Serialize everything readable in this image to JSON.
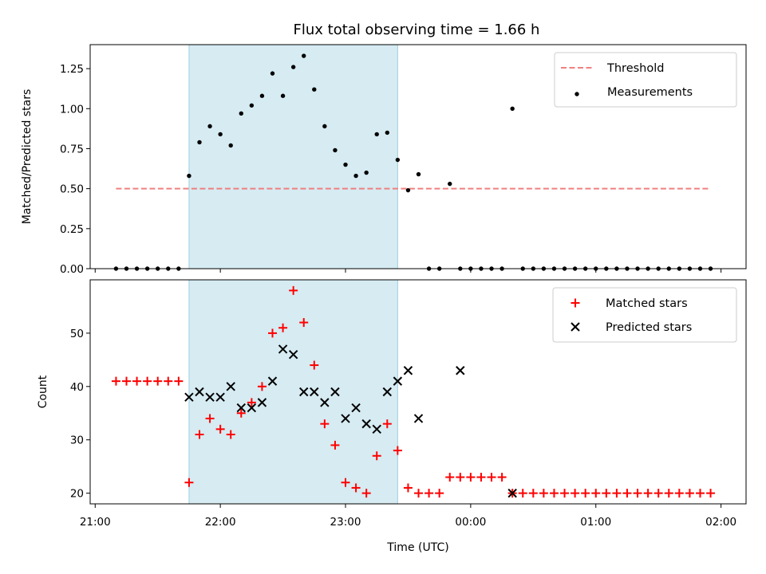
{
  "chart_data": [
    {
      "type": "scatter",
      "title": "Flux total observing time = 1.66 h",
      "xlabel": "",
      "ylabel": "Matched/Predicted stars",
      "xlim": [
        "21:00",
        "02:00"
      ],
      "ylim": [
        0,
        1.4
      ],
      "y_ticks": [
        "0.00",
        "0.25",
        "0.50",
        "0.75",
        "1.00",
        "1.25"
      ],
      "highlight_span": {
        "from": "21:45",
        "to": "23:25",
        "color": "#add8e6"
      },
      "legend_position": "top-right",
      "series": [
        {
          "name": "Threshold",
          "kind": "dashed-line",
          "color": "#f08080",
          "x": [
            "21:10",
            "01:55"
          ],
          "y": [
            0.5,
            0.5
          ]
        },
        {
          "name": "Measurements",
          "kind": "dots",
          "color": "#000000",
          "x": [
            "21:10",
            "21:15",
            "21:20",
            "21:25",
            "21:30",
            "21:35",
            "21:40",
            "21:45",
            "21:50",
            "21:55",
            "22:00",
            "22:05",
            "22:10",
            "22:15",
            "22:20",
            "22:25",
            "22:30",
            "22:35",
            "22:40",
            "22:45",
            "22:50",
            "22:55",
            "23:00",
            "23:05",
            "23:10",
            "23:15",
            "23:20",
            "23:25",
            "23:30",
            "23:35",
            "23:40",
            "23:45",
            "23:50",
            "23:55",
            "00:00",
            "00:05",
            "00:10",
            "00:15",
            "00:20",
            "00:25",
            "00:30",
            "00:35",
            "00:40",
            "00:45",
            "00:50",
            "00:55",
            "01:00",
            "01:05",
            "01:10",
            "01:15",
            "01:20",
            "01:25",
            "01:30",
            "01:35",
            "01:40",
            "01:45",
            "01:50",
            "01:55"
          ],
          "y": [
            0,
            0,
            0,
            0,
            0,
            0,
            0,
            0.58,
            0.79,
            0.89,
            0.84,
            0.77,
            0.97,
            1.02,
            1.08,
            1.22,
            1.08,
            1.26,
            1.33,
            1.12,
            0.89,
            0.74,
            0.65,
            0.58,
            0.6,
            0.84,
            0.85,
            0.68,
            0.49,
            0.59,
            0,
            0,
            0.53,
            0,
            0,
            0,
            0,
            0,
            1.0,
            0,
            0,
            0,
            0,
            0,
            0,
            0,
            0,
            0,
            0,
            0,
            0,
            0,
            0,
            0,
            0,
            0,
            0,
            0
          ]
        }
      ]
    },
    {
      "type": "scatter",
      "title": "",
      "xlabel": "Time (UTC)",
      "ylabel": "Count",
      "xlim": [
        "21:00",
        "02:00"
      ],
      "ylim": [
        18,
        60
      ],
      "x_ticks": [
        "21:00",
        "22:00",
        "23:00",
        "00:00",
        "01:00",
        "02:00"
      ],
      "y_ticks": [
        20,
        30,
        40,
        50
      ],
      "highlight_span": {
        "from": "21:45",
        "to": "23:25",
        "color": "#add8e6"
      },
      "legend_position": "top-right",
      "series": [
        {
          "name": "Matched stars",
          "kind": "plus",
          "color": "#ff0000",
          "x": [
            "21:10",
            "21:15",
            "21:20",
            "21:25",
            "21:30",
            "21:35",
            "21:40",
            "21:45",
            "21:50",
            "21:55",
            "22:00",
            "22:05",
            "22:10",
            "22:15",
            "22:20",
            "22:25",
            "22:30",
            "22:35",
            "22:40",
            "22:45",
            "22:50",
            "22:55",
            "23:00",
            "23:05",
            "23:10",
            "23:15",
            "23:20",
            "23:25",
            "23:30",
            "23:35",
            "23:40",
            "23:45",
            "23:50",
            "23:55",
            "00:00",
            "00:05",
            "00:10",
            "00:15",
            "00:20",
            "00:25",
            "00:30",
            "00:35",
            "00:40",
            "00:45",
            "00:50",
            "00:55",
            "01:00",
            "01:05",
            "01:10",
            "01:15",
            "01:20",
            "01:25",
            "01:30",
            "01:35",
            "01:40",
            "01:45",
            "01:50",
            "01:55"
          ],
          "y": [
            41,
            41,
            41,
            41,
            41,
            41,
            41,
            22,
            31,
            34,
            32,
            31,
            35,
            37,
            40,
            50,
            51,
            58,
            52,
            44,
            33,
            29,
            22,
            21,
            20,
            27,
            33,
            28,
            21,
            20,
            20,
            20,
            23,
            23,
            23,
            23,
            23,
            23,
            20,
            20,
            20,
            20,
            20,
            20,
            20,
            20,
            20,
            20,
            20,
            20,
            20,
            20,
            20,
            20,
            20,
            20,
            20,
            20
          ]
        },
        {
          "name": "Predicted stars",
          "kind": "cross",
          "color": "#000000",
          "x": [
            "21:45",
            "21:50",
            "21:55",
            "22:00",
            "22:05",
            "22:10",
            "22:15",
            "22:20",
            "22:25",
            "22:30",
            "22:35",
            "22:40",
            "22:45",
            "22:50",
            "22:55",
            "23:00",
            "23:05",
            "23:10",
            "23:15",
            "23:20",
            "23:25",
            "23:30",
            "23:35",
            "23:55",
            "00:20"
          ],
          "y": [
            38,
            39,
            38,
            38,
            40,
            36,
            36,
            37,
            41,
            47,
            46,
            39,
            39,
            37,
            39,
            34,
            36,
            33,
            32,
            39,
            41,
            43,
            34,
            43,
            20
          ]
        }
      ]
    }
  ]
}
